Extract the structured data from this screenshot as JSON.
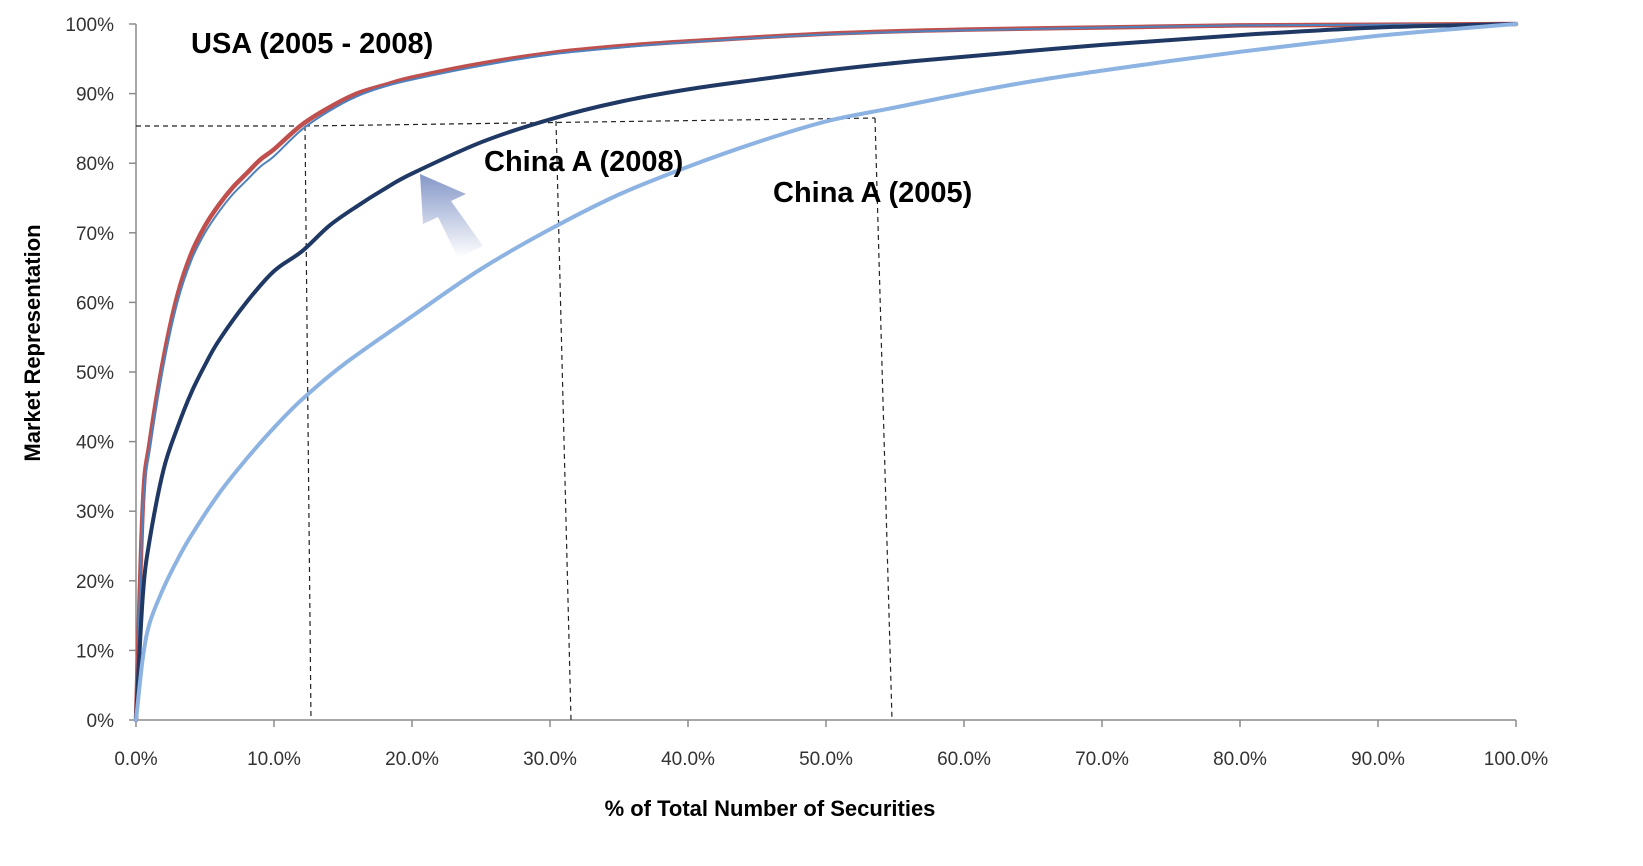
{
  "chart_data": {
    "type": "line",
    "xlabel": "% of Total Number of Securities",
    "ylabel": "Market Representation",
    "xlim": [
      0,
      100
    ],
    "ylim": [
      0,
      100
    ],
    "x_ticks": [
      "0.0%",
      "10.0%",
      "20.0%",
      "30.0%",
      "40.0%",
      "50.0%",
      "60.0%",
      "70.0%",
      "80.0%",
      "90.0%",
      "100.0%"
    ],
    "y_ticks": [
      "0%",
      "10%",
      "20%",
      "30%",
      "40%",
      "50%",
      "60%",
      "70%",
      "80%",
      "90%",
      "100%"
    ],
    "grid": false,
    "legend": "none",
    "series": [
      {
        "color": "#c0504d",
        "x": [
          0,
          0.5,
          1,
          2,
          3,
          4,
          5,
          6,
          7,
          8,
          9,
          10,
          12,
          14,
          16,
          18,
          20,
          25,
          30,
          35,
          40,
          50,
          60,
          70,
          80,
          90,
          100
        ],
        "y": [
          0,
          31,
          40,
          52,
          61,
          67,
          71,
          74,
          76.5,
          78.5,
          80.5,
          82,
          85.5,
          88,
          90,
          91.2,
          92.3,
          94.3,
          95.8,
          96.8,
          97.5,
          98.6,
          99.2,
          99.5,
          99.8,
          99.9,
          100
        ]
      },
      {
        "color": "#4f81bd",
        "x": [
          0,
          0.5,
          1,
          2,
          3,
          4,
          5,
          6,
          7,
          8,
          9,
          10,
          12,
          14,
          16,
          18,
          20,
          25,
          30,
          35,
          40,
          50,
          60,
          70,
          80,
          90,
          100
        ],
        "y": [
          0,
          30,
          39,
          51,
          60,
          66,
          70,
          73,
          75.5,
          77.5,
          79.5,
          81,
          84.8,
          87.5,
          89.6,
          91,
          92,
          94,
          95.6,
          96.6,
          97.4,
          98.5,
          99.1,
          99.5,
          99.8,
          99.9,
          100
        ]
      },
      {
        "color": "#1f3864",
        "x": [
          0,
          0.5,
          1,
          2,
          3,
          4,
          5,
          6,
          8,
          10,
          12,
          14,
          16,
          18,
          20,
          25,
          30,
          35,
          40,
          45,
          50,
          55,
          60,
          70,
          80,
          90,
          100
        ],
        "y": [
          0,
          18,
          26,
          36,
          42,
          47,
          51,
          54.5,
          60,
          64.5,
          67.3,
          71,
          73.8,
          76.3,
          78.5,
          83,
          86.3,
          88.8,
          90.6,
          92,
          93.3,
          94.4,
          95.3,
          97,
          98.4,
          99.5,
          100
        ]
      },
      {
        "color": "#8db3e2",
        "x": [
          0,
          0.5,
          1,
          2,
          3,
          4,
          6,
          8,
          10,
          12,
          15,
          20,
          25,
          30,
          35,
          40,
          45,
          50,
          55,
          60,
          65,
          70,
          75,
          80,
          85,
          90,
          95,
          100
        ],
        "y": [
          0,
          9,
          14,
          19,
          23,
          26.5,
          32.5,
          37.5,
          42,
          46,
          51,
          58,
          64.8,
          70.5,
          75.5,
          79.5,
          83,
          86,
          88,
          90,
          91.8,
          93.3,
          94.7,
          96,
          97.2,
          98.3,
          99.2,
          100
        ]
      }
    ],
    "annotations": [
      {
        "text": "USA (2005 - 2008)"
      },
      {
        "text": "China A (2008)"
      },
      {
        "text": "China A (2005)"
      }
    ]
  }
}
